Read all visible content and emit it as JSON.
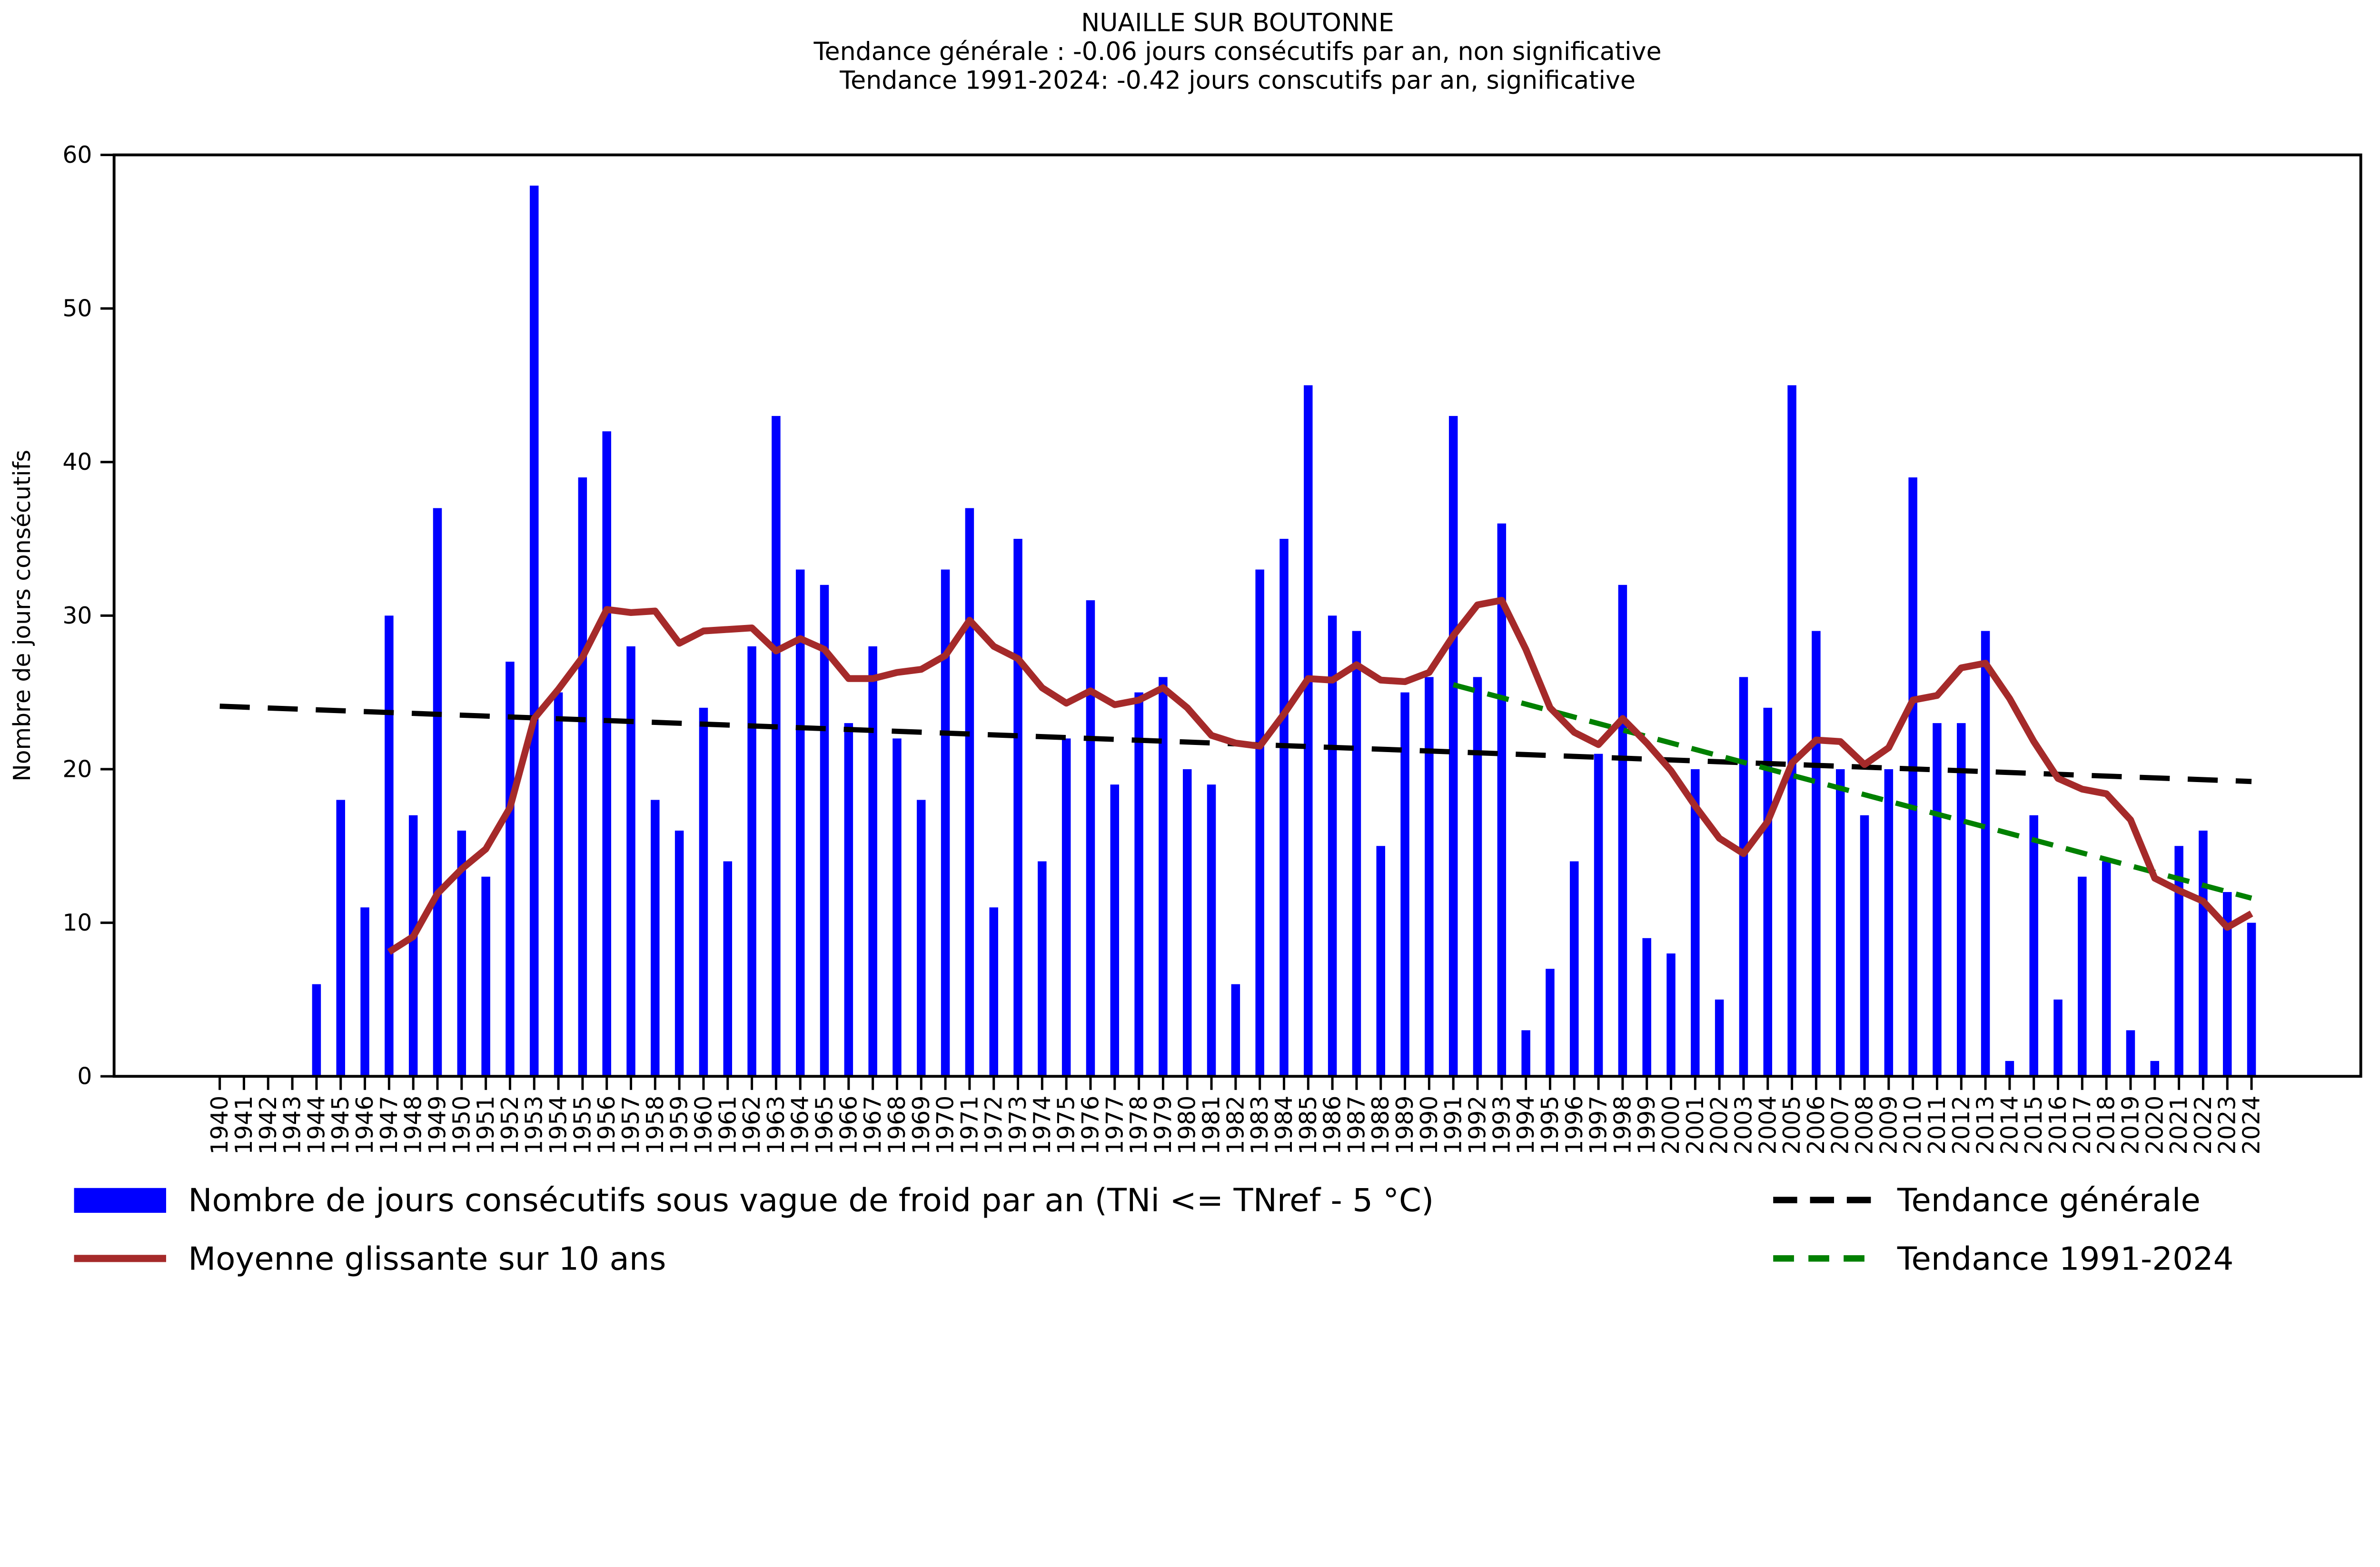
{
  "title": {
    "line1": "NUAILLE SUR BOUTONNE",
    "line2": "Tendance générale : -0.06 jours consécutifs par an, non significative",
    "line3": "Tendance 1991-2024: -0.42 jours conscutifs par an, significative"
  },
  "ylabel": "Nombre de jours consécutifs",
  "legend": {
    "bars": "Nombre de jours consécutifs sous vague de froid par an (TNi <= TNref - 5 °C)",
    "rolling": "Moyenne glissante sur 10 ans",
    "trend_general": "Tendance générale",
    "trend_recent": "Tendance 1991-2024"
  },
  "colors": {
    "bar": "#0000ff",
    "rolling": "#a52a2a",
    "trend_general": "#000000",
    "trend_recent": "#008000"
  },
  "chart_data": {
    "type": "bar",
    "title": "NUAILLE SUR BOUTONNE",
    "xlabel": "",
    "ylabel": "Nombre de jours consécutifs",
    "ylim": [
      0,
      60
    ],
    "yticks": [
      0,
      10,
      20,
      30,
      40,
      50,
      60
    ],
    "grid": false,
    "years": [
      1940,
      1941,
      1942,
      1943,
      1944,
      1945,
      1946,
      1947,
      1948,
      1949,
      1950,
      1951,
      1952,
      1953,
      1954,
      1955,
      1956,
      1957,
      1958,
      1959,
      1960,
      1961,
      1962,
      1963,
      1964,
      1965,
      1966,
      1967,
      1968,
      1969,
      1970,
      1971,
      1972,
      1973,
      1974,
      1975,
      1976,
      1977,
      1978,
      1979,
      1980,
      1981,
      1982,
      1983,
      1984,
      1985,
      1986,
      1987,
      1988,
      1989,
      1990,
      1991,
      1992,
      1993,
      1994,
      1995,
      1996,
      1997,
      1998,
      1999,
      2000,
      2001,
      2002,
      2003,
      2004,
      2005,
      2006,
      2007,
      2008,
      2009,
      2010,
      2011,
      2012,
      2013,
      2014,
      2015,
      2016,
      2017,
      2018,
      2019,
      2020,
      2021,
      2022,
      2023,
      2024
    ],
    "values": [
      0,
      0,
      0,
      0,
      6,
      18,
      11,
      30,
      17,
      37,
      16,
      13,
      27,
      58,
      25,
      39,
      42,
      28,
      18,
      16,
      24,
      14,
      28,
      43,
      33,
      32,
      23,
      28,
      22,
      18,
      33,
      37,
      11,
      35,
      14,
      22,
      31,
      19,
      25,
      26,
      20,
      19,
      6,
      33,
      35,
      45,
      30,
      29,
      15,
      25,
      26,
      43,
      26,
      36,
      3,
      7,
      14,
      21,
      32,
      9,
      8,
      20,
      5,
      26,
      24,
      45,
      29,
      20,
      17,
      20,
      39,
      23,
      23,
      29,
      1,
      17,
      5,
      13,
      14,
      3,
      1,
      15,
      16,
      12,
      10
    ],
    "series": [
      {
        "name": "Moyenne glissante sur 10 ans",
        "type": "line",
        "start_year": 1947,
        "values": [
          8.1,
          9.1,
          11.9,
          13.5,
          14.8,
          17.5,
          23.3,
          25.2,
          27.3,
          30.4,
          30.2,
          30.3,
          28.2,
          29.0,
          29.1,
          29.2,
          27.7,
          28.5,
          27.8,
          25.9,
          25.9,
          26.3,
          26.5,
          27.4,
          29.7,
          28.0,
          27.2,
          25.3,
          24.3,
          25.1,
          24.2,
          24.5,
          25.3,
          24.0,
          22.2,
          21.7,
          21.5,
          23.6,
          25.9,
          25.8,
          26.8,
          25.8,
          25.7,
          26.3,
          28.7,
          30.7,
          31.0,
          27.8,
          24.0,
          22.4,
          21.6,
          23.3,
          21.7,
          19.9,
          17.6,
          15.5,
          14.5,
          16.6,
          20.4,
          21.9,
          21.8,
          20.3,
          21.4,
          24.5,
          24.8,
          26.6,
          26.9,
          24.6,
          21.8,
          19.4,
          18.7,
          18.4,
          16.7,
          12.9,
          12.1,
          11.4,
          9.7,
          10.6
        ]
      },
      {
        "name": "Tendance générale",
        "type": "trend",
        "slope_per_year": -0.06,
        "x1_year": 1940,
        "y1": 24.1,
        "x2_year": 2024,
        "y2": 19.2
      },
      {
        "name": "Tendance 1991-2024",
        "type": "trend",
        "slope_per_year": -0.42,
        "x1_year": 1991,
        "y1": 25.5,
        "x2_year": 2024,
        "y2": 11.6
      }
    ],
    "legend_position": "below-left-two-columns"
  }
}
